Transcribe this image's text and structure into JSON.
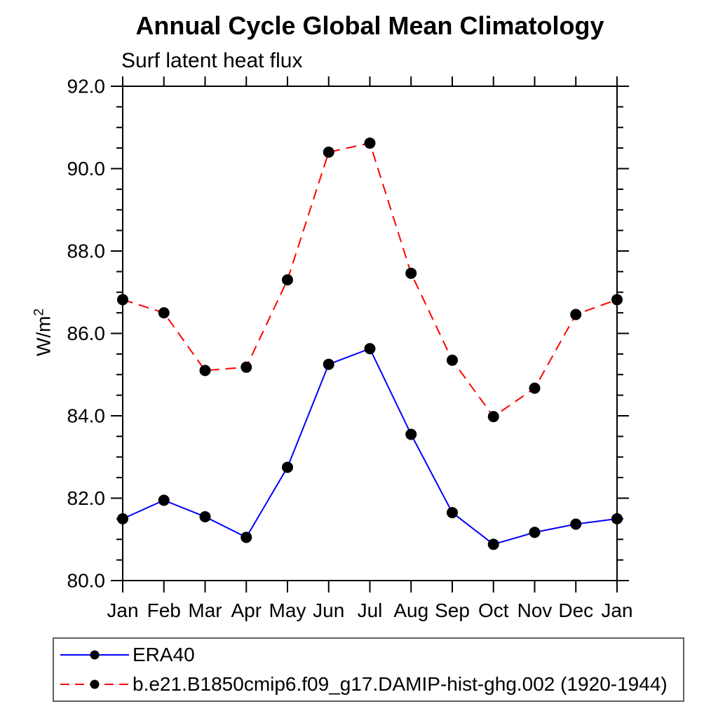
{
  "chart_data": {
    "type": "line",
    "title": "Annual Cycle Global Mean Climatology",
    "subtitle": "Surf latent heat flux",
    "ylabel": "W/m²",
    "ylabel_base": "W/m",
    "ylabel_exp": "2",
    "xlabel": "",
    "x_categories": [
      "Jan",
      "Feb",
      "Mar",
      "Apr",
      "May",
      "Jun",
      "Jul",
      "Aug",
      "Sep",
      "Oct",
      "Nov",
      "Dec",
      "Jan"
    ],
    "ylim": [
      80.0,
      92.0
    ],
    "ytick_labels": [
      "80.0",
      "82.0",
      "84.0",
      "86.0",
      "88.0",
      "90.0",
      "92.0"
    ],
    "ytick_major_values": [
      80.0,
      82.0,
      84.0,
      86.0,
      88.0,
      90.0,
      92.0
    ],
    "ytick_minor_step": 0.5,
    "grid": false,
    "legend_position": "bottom",
    "axis_color": "#000000",
    "marker_color": "#000000",
    "series": [
      {
        "name": "ERA40",
        "color": "#0000ff",
        "line_style": "solid",
        "values": [
          81.5,
          81.95,
          81.55,
          81.05,
          82.75,
          85.25,
          85.63,
          83.55,
          81.65,
          80.88,
          81.17,
          81.37,
          81.5
        ]
      },
      {
        "name": "b.e21.B1850cmip6.f09_g17.DAMIP-hist-ghg.002 (1920-1944)",
        "color": "#ff0000",
        "line_style": "dashed",
        "values": [
          86.82,
          86.5,
          85.1,
          85.18,
          87.3,
          90.4,
          90.62,
          87.46,
          85.35,
          83.98,
          84.67,
          86.46,
          86.82
        ]
      }
    ]
  }
}
